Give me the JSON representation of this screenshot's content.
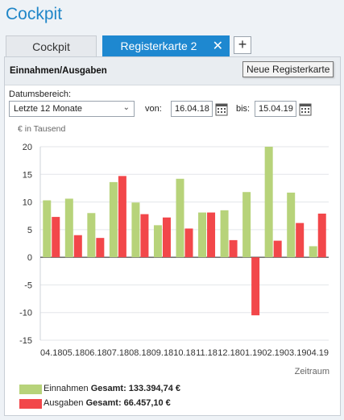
{
  "app": {
    "title": "Cockpit"
  },
  "tabs": [
    {
      "label": "Cockpit",
      "active": false
    },
    {
      "label": "Registerkarte 2",
      "active": true
    }
  ],
  "tab_close_icon": "close-icon",
  "tab_add_label": "+",
  "tooltip": "Neue Registerkarte",
  "panel": {
    "title": "Einnahmen/Ausgaben",
    "date_range_label": "Datumsbereich:",
    "date_range_value": "Letzte 12 Monate",
    "from_label": "von:",
    "from_value": "16.04.18",
    "to_label": "bis:",
    "to_value": "15.04.19"
  },
  "colors": {
    "accent": "#1e88d0",
    "income": "#b7d37a",
    "expense": "#f2474a"
  },
  "chart_data": {
    "type": "bar",
    "ylabel": "€ in Tausend",
    "xlabel": "Zeitraum",
    "ylim": [
      -15,
      20
    ],
    "yticks": [
      20,
      15,
      10,
      5,
      0,
      -5,
      -10,
      -15
    ],
    "grid": true,
    "categories": [
      "04.18",
      "05.18",
      "06.18",
      "07.18",
      "08.18",
      "09.18",
      "10.18",
      "11.18",
      "12.18",
      "01.19",
      "02.19",
      "03.19",
      "04.19"
    ],
    "series": [
      {
        "name": "Einnahmen",
        "total_label": "Gesamt: 133.394,74 €",
        "values": [
          10.3,
          10.6,
          8.0,
          13.6,
          9.9,
          5.8,
          14.2,
          8.1,
          8.5,
          11.8,
          20.0,
          11.7,
          2.0
        ]
      },
      {
        "name": "Ausgaben",
        "total_label": "Gesamt: 66.457,10 €",
        "values": [
          7.3,
          4.0,
          3.5,
          14.7,
          7.8,
          7.2,
          5.2,
          8.1,
          3.1,
          -10.5,
          3.0,
          6.2,
          7.9
        ]
      }
    ],
    "legend_position": "bottom-left"
  }
}
